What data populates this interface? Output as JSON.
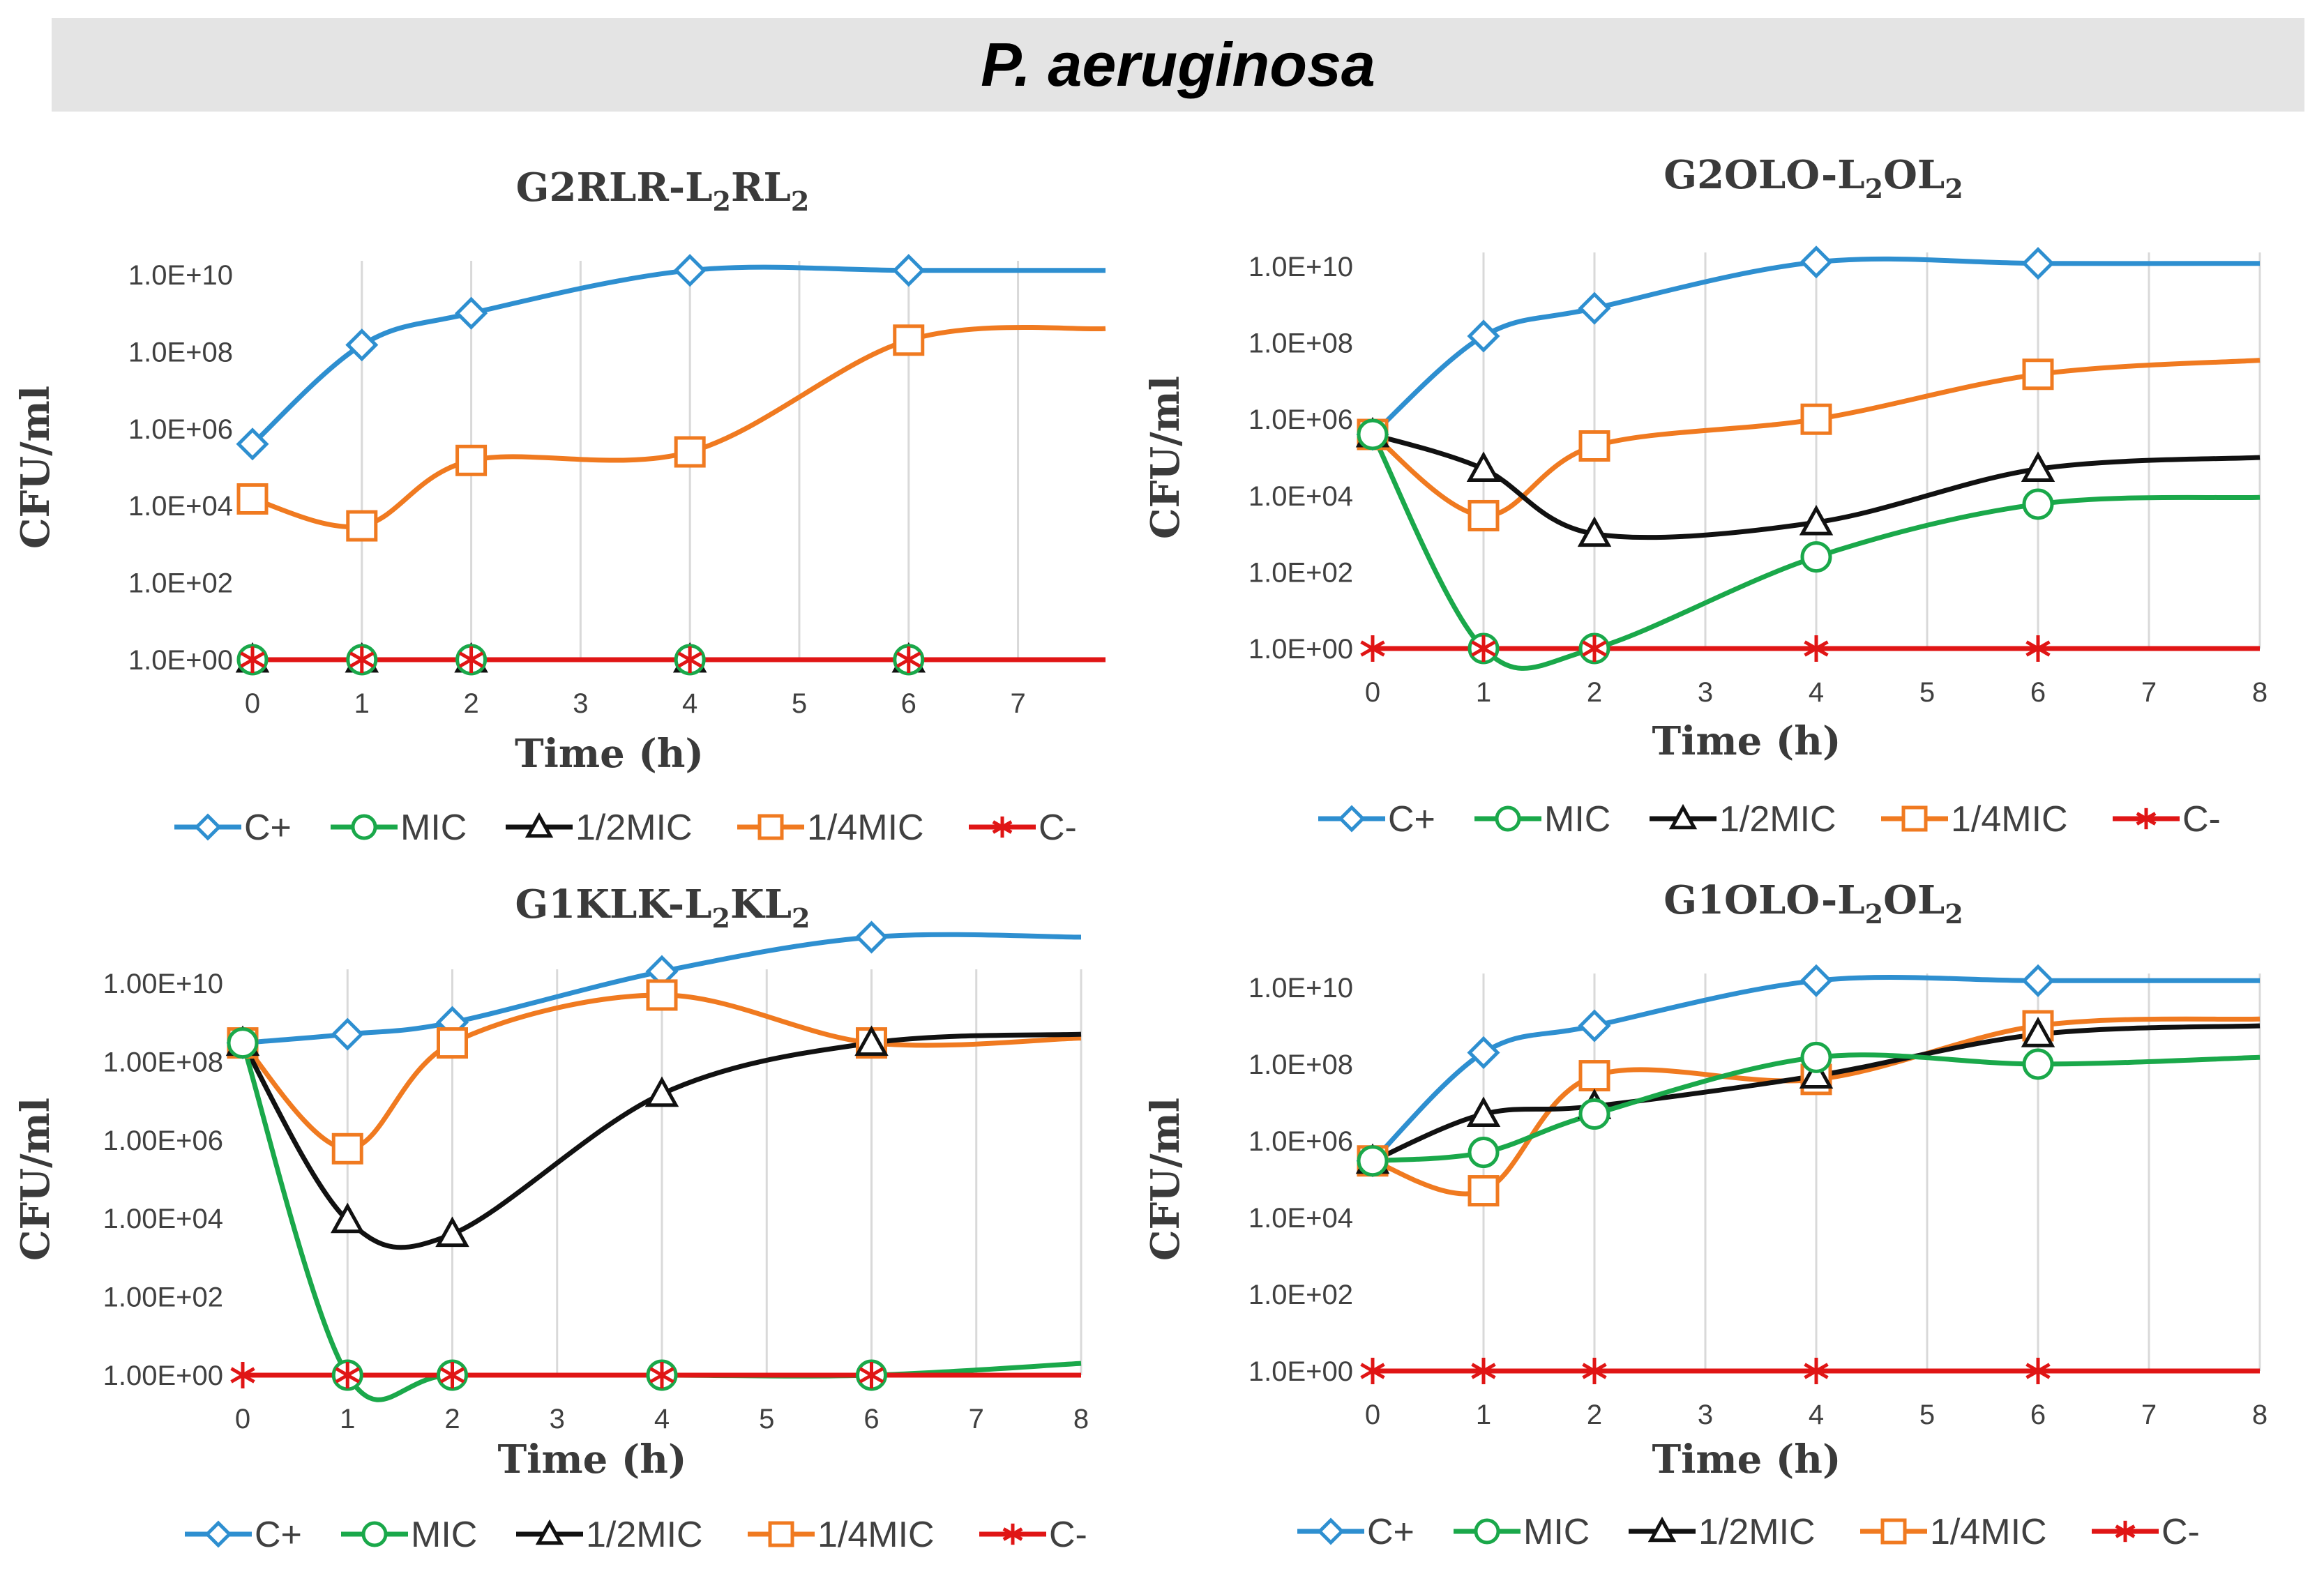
{
  "banner": {
    "title": "P. aeruginosa"
  },
  "colors": {
    "C+": "#2e8fd0",
    "MIC": "#1aa84a",
    "1/2MIC": "#111111",
    "1/4MIC": "#f07a20",
    "C-": "#e01515"
  },
  "chart_data": [
    {
      "type": "line",
      "title_base": "G2RLR-L",
      "title_mid": "RL",
      "title_sub": "2",
      "xlabel": "Time (h)",
      "ylabel": "CFU/ml",
      "xlim": [
        0,
        7.8
      ],
      "xticks": [
        "0",
        "1",
        "2",
        "3",
        "4",
        "5",
        "6",
        "7"
      ],
      "ylim_log": [
        0,
        10
      ],
      "yticks": [
        "1.0E+00",
        "1.0E+02",
        "1.0E+04",
        "1.0E+06",
        "1.0E+08",
        "1.0E+10"
      ],
      "series": [
        {
          "name": "C+",
          "marker": "diamond",
          "x": [
            0,
            1,
            2,
            4,
            6,
            7.8
          ],
          "y": [
            400000,
            150000000,
            1000000000,
            13000000000,
            13000000000,
            13000000000
          ],
          "markers": [
            0,
            1,
            2,
            4,
            6
          ]
        },
        {
          "name": "MIC",
          "marker": "circle",
          "x": [
            0,
            1,
            2,
            4,
            6,
            7.8
          ],
          "y": [
            1,
            1,
            1,
            1,
            1,
            1
          ],
          "markers": [
            0,
            1,
            2,
            4,
            6
          ]
        },
        {
          "name": "1/2MIC",
          "marker": "triangle",
          "x": [
            0,
            1,
            2,
            4,
            6,
            7.8
          ],
          "y": [
            1,
            1,
            1,
            1,
            1,
            1
          ],
          "markers": [
            0,
            1,
            2,
            4,
            6
          ]
        },
        {
          "name": "1/4MIC",
          "marker": "square",
          "x": [
            0,
            1,
            2,
            4,
            6,
            7.8
          ],
          "y": [
            15000,
            3000,
            150000,
            250000,
            200000000,
            400000000
          ],
          "markers": [
            0,
            1,
            2,
            4,
            6
          ]
        },
        {
          "name": "C-",
          "marker": "star",
          "x": [
            0,
            1,
            2,
            4,
            6,
            7.8
          ],
          "y": [
            1,
            1,
            1,
            1,
            1,
            1
          ],
          "markers": [
            0,
            1,
            2,
            4,
            6
          ]
        }
      ]
    },
    {
      "type": "line",
      "title_base": "G2OLO-L",
      "title_mid": "OL",
      "title_sub": "2",
      "xlabel": "Time (h)",
      "ylabel": "CFU/ml",
      "xlim": [
        0,
        8
      ],
      "xticks": [
        "0",
        "1",
        "2",
        "3",
        "4",
        "5",
        "6",
        "7",
        "8"
      ],
      "ylim_log": [
        0,
        10
      ],
      "yticks": [
        "1.0E+00",
        "1.0E+02",
        "1.0E+04",
        "1.0E+06",
        "1.0E+08",
        "1.0E+10"
      ],
      "series": [
        {
          "name": "C+",
          "marker": "diamond",
          "x": [
            0,
            1,
            2,
            4,
            6,
            8
          ],
          "y": [
            400000,
            150000000,
            800000000,
            13000000000,
            12000000000,
            12000000000
          ],
          "markers": [
            0,
            1,
            2,
            4,
            6
          ]
        },
        {
          "name": "MIC",
          "marker": "circle",
          "x": [
            0,
            1,
            2,
            4,
            6,
            8
          ],
          "y": [
            400000,
            1,
            1,
            250,
            6000,
            9000
          ],
          "markers": [
            0,
            1,
            2,
            4,
            6
          ]
        },
        {
          "name": "1/2MIC",
          "marker": "triangle",
          "x": [
            0,
            1,
            2,
            4,
            6,
            8
          ],
          "y": [
            400000,
            50000,
            1000,
            2000,
            50000,
            100000
          ],
          "markers": [
            0,
            1,
            2,
            4,
            6
          ]
        },
        {
          "name": "1/4MIC",
          "marker": "square",
          "x": [
            0,
            1,
            2,
            4,
            6,
            8
          ],
          "y": [
            400000,
            3000,
            200000,
            1000000,
            15000000,
            35000000
          ],
          "markers": [
            0,
            1,
            2,
            4,
            6
          ]
        },
        {
          "name": "C-",
          "marker": "star",
          "x": [
            0,
            1,
            2,
            4,
            6,
            8
          ],
          "y": [
            1,
            1,
            1,
            1,
            1,
            1
          ],
          "markers": [
            0,
            1,
            2,
            4,
            6
          ]
        }
      ]
    },
    {
      "type": "line",
      "title_base": "G1KLK-L",
      "title_mid": "KL",
      "title_sub": "2",
      "xlabel": "Time (h)",
      "ylabel": "CFU/ml",
      "xlim": [
        0,
        8
      ],
      "xticks": [
        "0",
        "1",
        "2",
        "3",
        "4",
        "5",
        "6",
        "7",
        "8"
      ],
      "ylim_log": [
        0,
        10
      ],
      "yticks": [
        "1.00E+00",
        "1.00E+02",
        "1.00E+04",
        "1.00E+06",
        "1.00E+08",
        "1.00E+10"
      ],
      "series": [
        {
          "name": "C+",
          "marker": "diamond",
          "x": [
            0,
            1,
            2,
            4,
            6,
            8
          ],
          "y": [
            300000000,
            500000000,
            1000000000,
            20000000000,
            150000000000,
            150000000000
          ],
          "markers": [
            0,
            1,
            2,
            4,
            6
          ]
        },
        {
          "name": "MIC",
          "marker": "circle",
          "x": [
            0,
            1,
            2,
            4,
            6,
            8
          ],
          "y": [
            300000000,
            1,
            1,
            1,
            1,
            2
          ],
          "markers": [
            0,
            1,
            2,
            4,
            6
          ]
        },
        {
          "name": "1/2MIC",
          "marker": "triangle",
          "x": [
            0,
            1,
            2,
            4,
            6,
            8
          ],
          "y": [
            300000000,
            9000,
            4000,
            15000000,
            300000000,
            500000000
          ],
          "markers": [
            0,
            1,
            2,
            4,
            6
          ]
        },
        {
          "name": "1/4MIC",
          "marker": "square",
          "x": [
            0,
            1,
            2,
            4,
            6,
            8
          ],
          "y": [
            300000000,
            600000,
            300000000,
            5000000000,
            300000000,
            400000000
          ],
          "markers": [
            0,
            1,
            2,
            4,
            6
          ]
        },
        {
          "name": "C-",
          "marker": "star",
          "x": [
            0,
            1,
            2,
            4,
            6,
            8
          ],
          "y": [
            1,
            1,
            1,
            1,
            1,
            1
          ],
          "markers": [
            0,
            1,
            2,
            4,
            6
          ]
        }
      ]
    },
    {
      "type": "line",
      "title_base": "G1OLO-L",
      "title_mid": "OL",
      "title_sub": "2",
      "xlabel": "Time (h)",
      "ylabel": "CFU/ml",
      "xlim": [
        0,
        8
      ],
      "xticks": [
        "0",
        "1",
        "2",
        "3",
        "4",
        "5",
        "6",
        "7",
        "8"
      ],
      "ylim_log": [
        0,
        10
      ],
      "yticks": [
        "1.0E+00",
        "1.0E+02",
        "1.0E+04",
        "1.0E+06",
        "1.0E+08",
        "1.0E+10"
      ],
      "series": [
        {
          "name": "C+",
          "marker": "diamond",
          "x": [
            0,
            1,
            2,
            4,
            6,
            8
          ],
          "y": [
            300000,
            200000000,
            1000000000,
            15000000000,
            15000000000,
            15000000000
          ],
          "markers": [
            0,
            1,
            2,
            4,
            6
          ]
        },
        {
          "name": "MIC",
          "marker": "circle",
          "x": [
            0,
            1,
            2,
            4,
            6,
            8
          ],
          "y": [
            300000,
            500000,
            5000000,
            150000000,
            100000000,
            150000000
          ],
          "markers": [
            0,
            1,
            2,
            4,
            6
          ]
        },
        {
          "name": "1/2MIC",
          "marker": "triangle",
          "x": [
            0,
            1,
            2,
            4,
            6,
            8
          ],
          "y": [
            300000,
            5000000,
            8000000,
            50000000,
            600000000,
            1000000000
          ],
          "markers": [
            0,
            1,
            2,
            4,
            6
          ]
        },
        {
          "name": "1/4MIC",
          "marker": "square",
          "x": [
            0,
            1,
            2,
            4,
            6,
            8
          ],
          "y": [
            300000,
            50000,
            50000000,
            40000000,
            1000000000,
            1500000000
          ],
          "markers": [
            0,
            1,
            2,
            4,
            6
          ]
        },
        {
          "name": "C-",
          "marker": "star",
          "x": [
            0,
            1,
            2,
            4,
            6,
            8
          ],
          "y": [
            1,
            1,
            1,
            1,
            1,
            1
          ],
          "markers": [
            0,
            1,
            2,
            4,
            6
          ]
        }
      ]
    }
  ]
}
